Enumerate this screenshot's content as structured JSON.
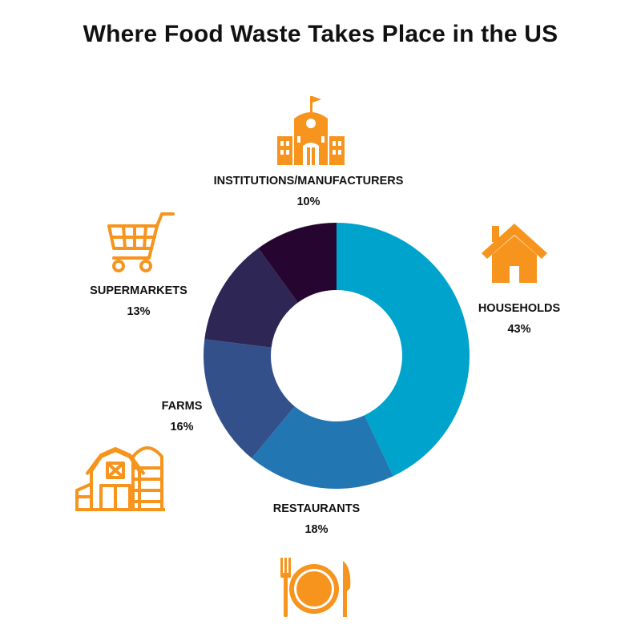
{
  "title": "Where Food Waste Takes Place in the US",
  "icon_color": "#f7941d",
  "chart_data": {
    "type": "pie",
    "style": "donut",
    "title": "Where Food Waste Takes Place in the US",
    "start": "top, clockwise",
    "categories": [
      "HOUSEHOLDS",
      "RESTAURANTS",
      "FARMS",
      "SUPERMARKETS",
      "INSTITUTIONS/MANUFACTURERS"
    ],
    "values": [
      43,
      18,
      16,
      13,
      10
    ],
    "value_labels": [
      "43%",
      "18%",
      "16%",
      "13%",
      "10%"
    ],
    "colors": [
      "#00a3cc",
      "#2277b2",
      "#33508a",
      "#2e2655",
      "#260530"
    ],
    "icons": [
      "house-icon",
      "plate-cutlery-icon",
      "barn-silo-icon",
      "shopping-cart-icon",
      "school-building-icon"
    ]
  }
}
